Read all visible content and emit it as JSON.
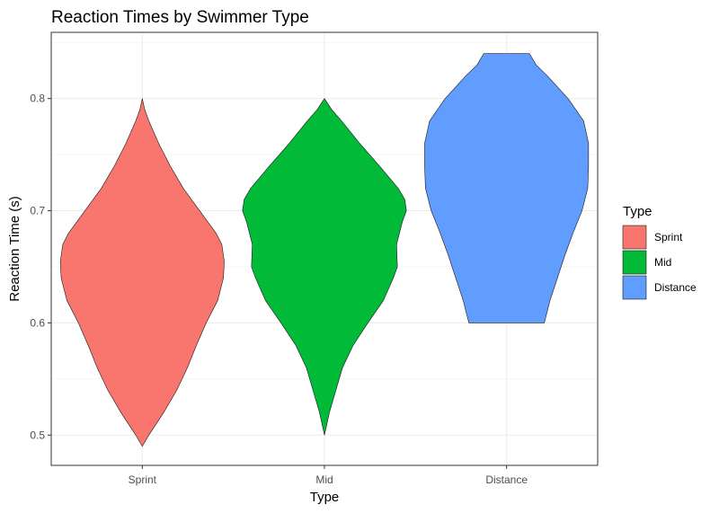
{
  "chart_data": {
    "type": "violin",
    "title": "Reaction Times by Swimmer Type",
    "xlabel": "Type",
    "ylabel": "Reaction Time (s)",
    "categories": [
      "Sprint",
      "Mid",
      "Distance"
    ],
    "ylim": [
      0.473,
      0.859
    ],
    "yticks": [
      "0.5",
      "0.6",
      "0.7",
      "0.8"
    ],
    "grid": true,
    "legend": {
      "title": "Type",
      "position": "right",
      "entries": [
        "Sprint",
        "Mid",
        "Distance"
      ]
    },
    "series": [
      {
        "category": "Sprint",
        "color": "#F8766D",
        "min": 0.49,
        "max": 0.8,
        "density": [
          [
            0.49,
            0.0
          ],
          [
            0.5,
            0.08
          ],
          [
            0.52,
            0.26
          ],
          [
            0.54,
            0.42
          ],
          [
            0.56,
            0.55
          ],
          [
            0.58,
            0.66
          ],
          [
            0.6,
            0.78
          ],
          [
            0.62,
            0.92
          ],
          [
            0.64,
            0.99
          ],
          [
            0.655,
            1.0
          ],
          [
            0.67,
            0.97
          ],
          [
            0.68,
            0.9
          ],
          [
            0.7,
            0.7
          ],
          [
            0.72,
            0.5
          ],
          [
            0.74,
            0.34
          ],
          [
            0.76,
            0.2
          ],
          [
            0.78,
            0.08
          ],
          [
            0.79,
            0.03
          ],
          [
            0.8,
            0.0
          ]
        ]
      },
      {
        "category": "Mid",
        "color": "#00BA38",
        "min": 0.5,
        "max": 0.8,
        "density": [
          [
            0.5,
            0.0
          ],
          [
            0.52,
            0.06
          ],
          [
            0.54,
            0.14
          ],
          [
            0.56,
            0.22
          ],
          [
            0.58,
            0.35
          ],
          [
            0.6,
            0.53
          ],
          [
            0.62,
            0.72
          ],
          [
            0.64,
            0.84
          ],
          [
            0.65,
            0.89
          ],
          [
            0.67,
            0.88
          ],
          [
            0.69,
            0.95
          ],
          [
            0.7,
            1.0
          ],
          [
            0.71,
            0.98
          ],
          [
            0.72,
            0.9
          ],
          [
            0.74,
            0.67
          ],
          [
            0.76,
            0.43
          ],
          [
            0.78,
            0.21
          ],
          [
            0.79,
            0.09
          ],
          [
            0.8,
            0.0
          ]
        ]
      },
      {
        "category": "Distance",
        "color": "#619CFF",
        "min": 0.6,
        "max": 0.84,
        "density": [
          [
            0.6,
            0.46
          ],
          [
            0.62,
            0.53
          ],
          [
            0.64,
            0.62
          ],
          [
            0.66,
            0.71
          ],
          [
            0.68,
            0.81
          ],
          [
            0.7,
            0.92
          ],
          [
            0.72,
            0.99
          ],
          [
            0.74,
            1.0
          ],
          [
            0.76,
            1.0
          ],
          [
            0.78,
            0.94
          ],
          [
            0.8,
            0.75
          ],
          [
            0.82,
            0.5
          ],
          [
            0.83,
            0.36
          ],
          [
            0.84,
            0.28
          ]
        ]
      }
    ]
  }
}
